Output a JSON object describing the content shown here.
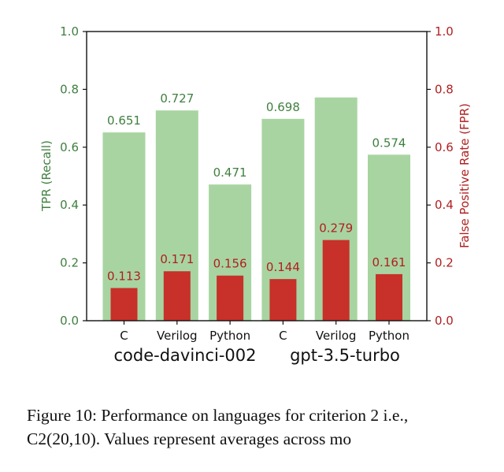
{
  "chart_data": {
    "type": "bar",
    "groups": [
      "code-davinci-002",
      "gpt-3.5-turbo"
    ],
    "categories": [
      "C",
      "Verilog",
      "Python",
      "C",
      "Verilog",
      "Python"
    ],
    "series": [
      {
        "axis": "left",
        "color": "#a8d4a1",
        "label_color": "#3f7f3f",
        "values": [
          0.651,
          0.727,
          0.471,
          0.698,
          0.772,
          0.574
        ],
        "labels": [
          "0.651",
          "0.727",
          "0.471",
          "0.698",
          "",
          "0.574"
        ]
      },
      {
        "axis": "right",
        "color": "#c8302a",
        "label_color": "#b02020",
        "values": [
          0.113,
          0.171,
          0.156,
          0.144,
          0.279,
          0.161
        ],
        "labels": [
          "0.113",
          "0.171",
          "0.156",
          "0.144",
          "0.279",
          "0.161"
        ]
      }
    ],
    "ylabel_left": "TPR (Recall)",
    "ylabel_right": "False Positive Rate (FPR)",
    "ylim": [
      0,
      1.0
    ],
    "yticks": [
      "0.0",
      "0.2",
      "0.4",
      "0.6",
      "0.8",
      "1.0"
    ],
    "grid": false
  },
  "caption": {
    "line1": "Figure 10: Performance on languages for criterion 2 i.e.,",
    "line2": "C2(20,10). Values represent averages across mo"
  }
}
